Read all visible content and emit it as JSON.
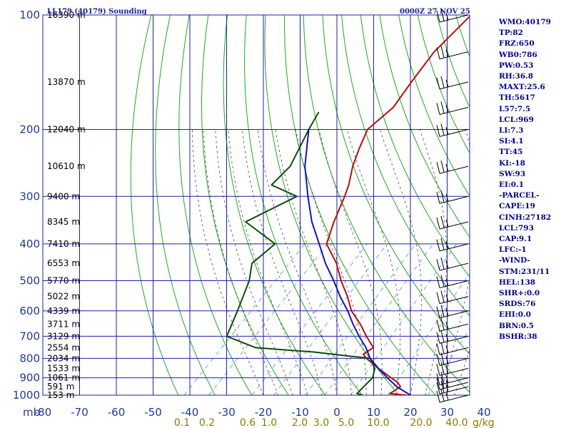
{
  "header": {
    "station": "LL179 (40179) Sounding",
    "datetime": "0000Z 27 NOV 25"
  },
  "indices": [
    "WMO:40179",
    "TP:82",
    "FRZ:650",
    "WB0:786",
    "PW:0.53",
    "RH:36.8",
    "MAXT:25.6",
    "TH:5617",
    "L57:7.5",
    "LCL:969",
    "LI:7.3",
    "SI:4.1",
    "TT:45",
    "KI:-18",
    "SW:93",
    "EI:0.1",
    "-PARCEL-",
    "CAPE:19",
    "CINH:27182",
    "LCL:793",
    "CAP:9.1",
    "LFC:-1",
    "-WIND-",
    "STM:231/11",
    "HEL:138",
    "SHR+:0.0",
    "SRDS:76",
    "EHI:0.0",
    "BRN:0.5",
    "BSHR:38"
  ],
  "colors": {
    "grid": "#1f1fa8",
    "dry_adiabat": "#22a822",
    "moist_adiabat": "#444444",
    "mixing_ratio": "#4d8fd6",
    "temperature": "#b01010",
    "dewpoint": "#0b4d0b",
    "parcel": "#1414b0",
    "label_blue": "#1f3a93",
    "label_mix": "#8c7a00",
    "wind_barb": "#000000"
  },
  "chart_data": {
    "type": "skew-t",
    "pressure_axis": {
      "unit_label": "mb",
      "ticks": [
        100,
        200,
        300,
        400,
        500,
        600,
        700,
        800,
        900,
        1000
      ],
      "range": [
        1000,
        100
      ],
      "scale": "log"
    },
    "temperature_axis": {
      "ticks": [
        -80,
        -70,
        -60,
        -50,
        -40,
        -30,
        -20,
        -10,
        0,
        10,
        20,
        30,
        40
      ],
      "tick_labels": [
        "-80",
        "-70",
        "-60",
        "-50",
        "-40",
        "-30",
        "-20",
        "-10",
        "0",
        "10",
        "20",
        "30",
        "40"
      ],
      "unit": "°C"
    },
    "mixing_ratio_labels": {
      "labels": [
        "0.1",
        "0.2",
        "0.6",
        "1.0",
        "2.0",
        "3.0",
        "5.0",
        "10.0",
        "20.0",
        "40.0"
      ],
      "unit": "g/kg"
    },
    "height_labels": [
      {
        "p": 100,
        "text": "16390 m"
      },
      {
        "p": 150,
        "text": "13870 m"
      },
      {
        "p": 200,
        "text": "12040 m"
      },
      {
        "p": 250,
        "text": "10610 m"
      },
      {
        "p": 300,
        "text": "9400 m"
      },
      {
        "p": 350,
        "text": "8345 m"
      },
      {
        "p": 400,
        "text": "7410 m"
      },
      {
        "p": 450,
        "text": "6553 m"
      },
      {
        "p": 500,
        "text": "5770 m"
      },
      {
        "p": 550,
        "text": "5022 m"
      },
      {
        "p": 600,
        "text": "4339 m"
      },
      {
        "p": 650,
        "text": "3711 m"
      },
      {
        "p": 700,
        "text": "3129 m"
      },
      {
        "p": 750,
        "text": "2554 m"
      },
      {
        "p": 800,
        "text": "2034 m"
      },
      {
        "p": 850,
        "text": "1533 m"
      },
      {
        "p": 900,
        "text": "1061 m"
      },
      {
        "p": 950,
        "text": "591 m"
      },
      {
        "p": 1000,
        "text": "153 m"
      }
    ],
    "series": [
      {
        "name": "temperature",
        "points": [
          [
            1000,
            19
          ],
          [
            990,
            14
          ],
          [
            950,
            15
          ],
          [
            925,
            13
          ],
          [
            900,
            10
          ],
          [
            850,
            4
          ],
          [
            800,
            -2
          ],
          [
            780,
            -4
          ],
          [
            750,
            -3
          ],
          [
            700,
            -8
          ],
          [
            650,
            -13
          ],
          [
            600,
            -19
          ],
          [
            550,
            -24
          ],
          [
            500,
            -30
          ],
          [
            450,
            -36
          ],
          [
            400,
            -44
          ],
          [
            350,
            -48
          ],
          [
            300,
            -52
          ],
          [
            280,
            -54
          ],
          [
            250,
            -58
          ],
          [
            225,
            -61
          ],
          [
            200,
            -64
          ],
          [
            175,
            -63
          ],
          [
            150,
            -65
          ],
          [
            125,
            -67
          ],
          [
            100,
            -67
          ]
        ]
      },
      {
        "name": "dewpoint",
        "points": [
          [
            1000,
            7
          ],
          [
            990,
            5
          ],
          [
            950,
            5
          ],
          [
            900,
            5
          ],
          [
            850,
            3
          ],
          [
            800,
            -1
          ],
          [
            790,
            -7
          ],
          [
            770,
            -18
          ],
          [
            750,
            -35
          ],
          [
            700,
            -46
          ],
          [
            600,
            -50
          ],
          [
            500,
            -55
          ],
          [
            450,
            -59
          ],
          [
            400,
            -58
          ],
          [
            350,
            -72
          ],
          [
            300,
            -65
          ],
          [
            280,
            -75
          ],
          [
            250,
            -75
          ],
          [
            200,
            -80
          ],
          [
            180,
            -82
          ]
        ]
      },
      {
        "name": "parcel",
        "points": [
          [
            1000,
            20
          ],
          [
            950,
            14
          ],
          [
            900,
            9
          ],
          [
            850,
            4
          ],
          [
            800,
            -1
          ],
          [
            750,
            -5
          ],
          [
            700,
            -10
          ],
          [
            650,
            -15
          ],
          [
            600,
            -20
          ],
          [
            550,
            -26
          ],
          [
            500,
            -32
          ],
          [
            450,
            -39
          ],
          [
            400,
            -46
          ],
          [
            350,
            -54
          ],
          [
            300,
            -62
          ],
          [
            250,
            -71
          ],
          [
            200,
            -80
          ]
        ]
      }
    ],
    "wind_barbs_pressures": [
      100,
      125,
      150,
      175,
      200,
      250,
      300,
      350,
      400,
      450,
      500,
      550,
      600,
      650,
      700,
      750,
      800,
      850,
      900,
      925,
      950,
      1000
    ]
  }
}
